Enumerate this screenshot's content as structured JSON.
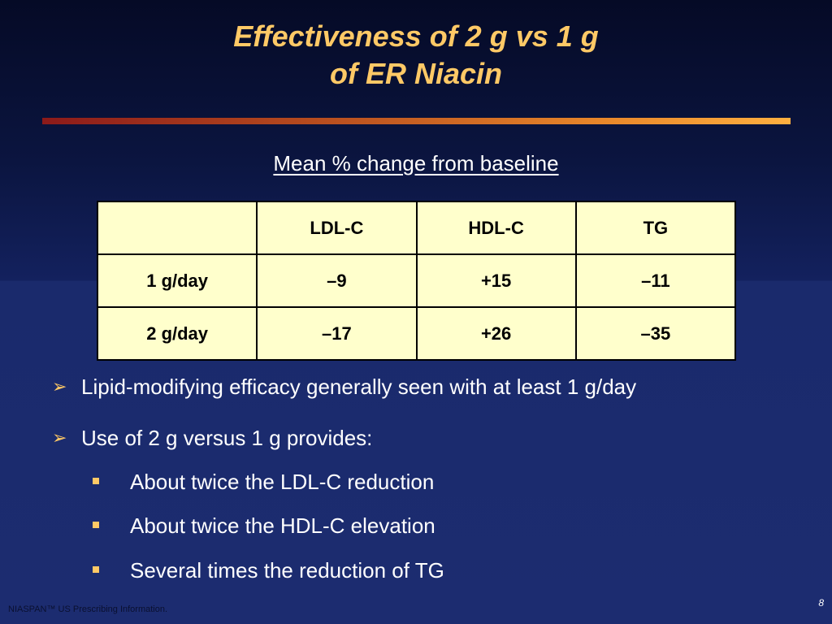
{
  "slide": {
    "title_line1": "Effectiveness of 2 g vs 1 g",
    "title_line2": "of ER Niacin",
    "subtitle": "Mean % change from baseline",
    "table": {
      "headers": [
        "",
        "LDL-C",
        "HDL-C",
        "TG"
      ],
      "rows": [
        [
          "1 g/day",
          "–9",
          "+15",
          "–11"
        ],
        [
          "2 g/day",
          "–17",
          "+26",
          "–35"
        ]
      ]
    },
    "bullets": [
      {
        "text": "Lipid-modifying efficacy generally seen with at least 1 g/day",
        "subitems": []
      },
      {
        "text": "Use of 2 g versus 1 g provides:",
        "subitems": [
          "About twice the LDL-C reduction",
          "About twice the HDL-C elevation",
          "Several times the reduction of TG"
        ]
      }
    ],
    "footnote": "NIASPAN™ US Prescribing Information.",
    "page_number": "8"
  },
  "colors": {
    "title": "#ffc966",
    "table_bg": "#ffffcc",
    "background": "#1a2a6c",
    "bullet_marker": "#ffc966"
  },
  "icons": {
    "level1_bullet": "arrowhead-bullet-icon",
    "level2_bullet": "square-bullet-icon"
  }
}
